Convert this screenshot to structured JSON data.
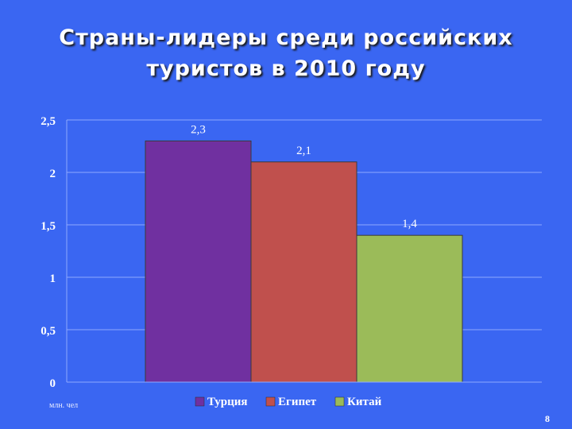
{
  "slide": {
    "title_line1": "Страны-лидеры среди российских",
    "title_line2": "туристов в 2010 году",
    "unit_note": "млн. чел",
    "page_number": "8"
  },
  "colors": {
    "background": "#3a66f2",
    "gridline": "#8fa8ff",
    "text": "#ffffff"
  },
  "chart_data": {
    "type": "bar",
    "title": "",
    "xlabel": "",
    "ylabel": "",
    "ylim": [
      0,
      2.5
    ],
    "yticks": [
      {
        "value": 0,
        "label": "0"
      },
      {
        "value": 0.5,
        "label": "0,5"
      },
      {
        "value": 1,
        "label": "1"
      },
      {
        "value": 1.5,
        "label": "1,5"
      },
      {
        "value": 2,
        "label": "2"
      },
      {
        "value": 2.5,
        "label": "2,5"
      }
    ],
    "grid": true,
    "legend_position": "bottom",
    "series": [
      {
        "name": "Турция",
        "value": 2.3,
        "label": "2,3",
        "color": "#7030a0"
      },
      {
        "name": "Египет",
        "value": 2.1,
        "label": "2,1",
        "color": "#c0504d"
      },
      {
        "name": "Китай",
        "value": 1.4,
        "label": "1,4",
        "color": "#9bbb59"
      }
    ]
  }
}
